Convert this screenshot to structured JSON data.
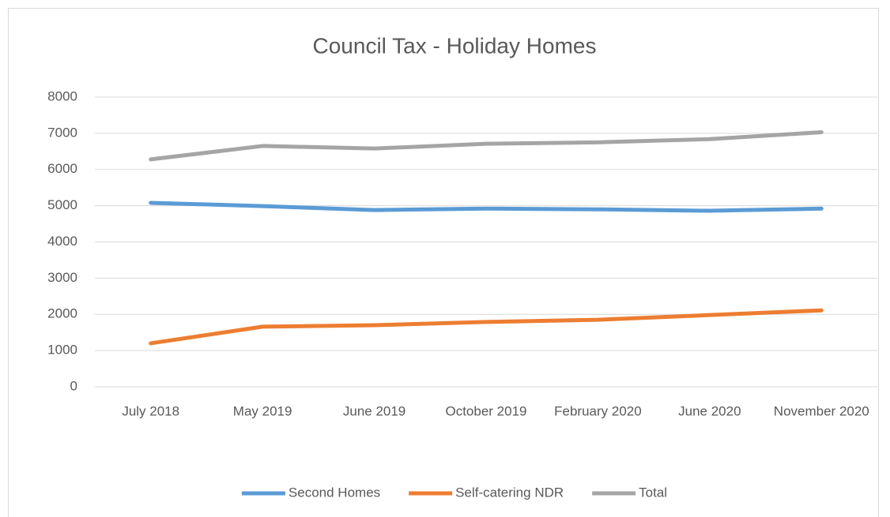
{
  "chart_data": {
    "type": "line",
    "title": "Council Tax - Holiday Homes",
    "categories": [
      "July 2018",
      "May 2019",
      "June 2019",
      "October 2019",
      "February 2020",
      "June 2020",
      "November 2020"
    ],
    "series": [
      {
        "name": "Second Homes",
        "color": "#5b9bd5",
        "values": [
          5080,
          4990,
          4880,
          4920,
          4900,
          4860,
          4920
        ]
      },
      {
        "name": "Self-catering NDR",
        "color": "#ed7d31",
        "values": [
          1200,
          1660,
          1700,
          1790,
          1850,
          1980,
          2110
        ]
      },
      {
        "name": "Total",
        "color": "#a5a5a5",
        "values": [
          6280,
          6650,
          6580,
          6710,
          6750,
          6840,
          7030
        ]
      }
    ],
    "ylim": [
      0,
      8000
    ],
    "yticks": [
      0,
      1000,
      2000,
      3000,
      4000,
      5000,
      6000,
      7000,
      8000
    ],
    "grid": true,
    "legend": "bottom"
  }
}
